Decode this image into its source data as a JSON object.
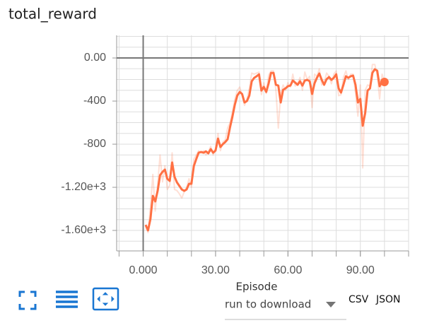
{
  "chart_data": {
    "type": "line",
    "title": "total_reward",
    "xlabel": "Episode",
    "x": [
      1,
      2,
      3,
      4,
      5,
      6,
      7,
      8,
      9,
      10,
      11,
      12,
      13,
      14,
      15,
      16,
      17,
      18,
      19,
      20,
      21,
      22,
      23,
      24,
      25,
      26,
      27,
      28,
      29,
      30,
      31,
      32,
      33,
      34,
      35,
      36,
      37,
      38,
      39,
      40,
      41,
      42,
      43,
      44,
      45,
      46,
      47,
      48,
      49,
      50,
      51,
      52,
      53,
      54,
      55,
      56,
      57,
      58,
      59,
      60,
      61,
      62,
      63,
      64,
      65,
      66,
      67,
      68,
      69,
      70,
      71,
      72,
      73,
      74,
      75,
      76,
      77,
      78,
      79,
      80,
      81,
      82,
      83,
      84,
      85,
      86,
      87,
      88,
      89,
      90,
      91,
      92,
      93,
      94,
      95,
      96,
      97,
      98,
      99,
      100
    ],
    "series": [
      {
        "color": "#ff7043",
        "opacity": 0.22,
        "width": 2,
        "values": [
          -1560,
          -1620,
          -1380,
          -1080,
          -1420,
          -1180,
          -900,
          -1150,
          -1000,
          -1220,
          -1180,
          -880,
          -1220,
          -1230,
          -1260,
          -1300,
          -1240,
          -1200,
          -1120,
          -1200,
          -940,
          -900,
          -860,
          -880,
          -860,
          -900,
          -870,
          -820,
          -900,
          -840,
          -700,
          -860,
          -780,
          -760,
          -650,
          -600,
          -500,
          -380,
          -300,
          -270,
          -350,
          -440,
          -380,
          -280,
          -140,
          -150,
          -140,
          -130,
          -340,
          -230,
          -330,
          -160,
          -120,
          -120,
          -300,
          -650,
          -330,
          -250,
          -300,
          -230,
          -270,
          -150,
          -260,
          -240,
          -180,
          -300,
          -130,
          -200,
          -170,
          -460,
          -150,
          -170,
          -100,
          -250,
          -230,
          -140,
          -170,
          -240,
          -150,
          -120,
          -350,
          -340,
          -180,
          -120,
          -200,
          -150,
          -150,
          -330,
          -540,
          -250,
          -1020,
          -300,
          -250,
          -260,
          -60,
          -60,
          -160,
          -380,
          -150,
          -220
        ]
      },
      {
        "color": "#ff7043",
        "opacity": 1,
        "width": 3,
        "end_marker": true,
        "values": [
          -1548,
          -1600,
          -1495,
          -1279,
          -1331,
          -1233,
          -1088,
          -1056,
          -1036,
          -1121,
          -1141,
          -970,
          -1102,
          -1154,
          -1187,
          -1220,
          -1233,
          -1220,
          -1167,
          -1167,
          -1003,
          -938,
          -879,
          -872,
          -879,
          -866,
          -885,
          -846,
          -879,
          -859,
          -748,
          -826,
          -800,
          -780,
          -754,
          -643,
          -544,
          -433,
          -348,
          -315,
          -334,
          -413,
          -400,
          -348,
          -216,
          -184,
          -170,
          -151,
          -302,
          -269,
          -315,
          -236,
          -138,
          -138,
          -249,
          -256,
          -413,
          -295,
          -282,
          -262,
          -256,
          -210,
          -229,
          -249,
          -216,
          -256,
          -210,
          -203,
          -216,
          -334,
          -236,
          -184,
          -144,
          -203,
          -249,
          -197,
          -177,
          -203,
          -184,
          -151,
          -282,
          -321,
          -249,
          -170,
          -184,
          -170,
          -164,
          -249,
          -413,
          -380,
          -629,
          -511,
          -302,
          -282,
          -138,
          -105,
          -118,
          -262,
          -216,
          -223
        ]
      }
    ],
    "xlim": [
      -11,
      110
    ],
    "ylim": [
      -1790,
      210
    ],
    "xticks": [
      {
        "value": 0,
        "label": "0.000"
      },
      {
        "value": 30,
        "label": "30.00"
      },
      {
        "value": 60,
        "label": "60.00"
      },
      {
        "value": 90,
        "label": "90.00"
      }
    ],
    "yticks": [
      {
        "value": 0,
        "label": "0.00"
      },
      -400,
      -800,
      {
        "value": -1200,
        "label": "-1.20e+3"
      },
      {
        "value": -1600,
        "label": "-1.60e+3"
      }
    ],
    "x_grid": [
      -10,
      0,
      10,
      20,
      30,
      40,
      50,
      60,
      70,
      80,
      90,
      100,
      110
    ],
    "y_grid": [
      200,
      100,
      0,
      -100,
      -200,
      -300,
      -400,
      -500,
      -600,
      -700,
      -800,
      -900,
      -1000,
      -1100,
      -1200,
      -1300,
      -1400,
      -1500,
      -1600,
      -1700
    ],
    "grid": true
  },
  "controls": {
    "dropdown": "run to download",
    "links": [
      "CSV",
      "JSON"
    ]
  }
}
